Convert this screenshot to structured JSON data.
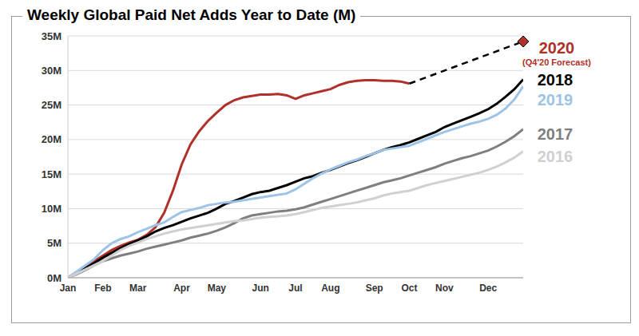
{
  "chart_data": {
    "type": "line",
    "title": "Weekly Global Paid Net Adds Year to Date (M)",
    "categories": [
      "Jan",
      null,
      null,
      null,
      "Feb",
      null,
      null,
      null,
      "Mar",
      null,
      null,
      null,
      null,
      "Apr",
      null,
      null,
      null,
      "May",
      null,
      null,
      null,
      null,
      "Jun",
      null,
      null,
      null,
      "Jul",
      null,
      null,
      null,
      "Aug",
      null,
      null,
      null,
      null,
      "Sep",
      null,
      null,
      null,
      "Oct",
      null,
      null,
      null,
      "Nov",
      null,
      null,
      null,
      null,
      "Dec",
      null,
      null,
      null,
      null
    ],
    "series": [
      {
        "name": "2020",
        "color": "#b0302a",
        "values": [
          0,
          0.8,
          1.6,
          2.4,
          3.2,
          4.0,
          4.6,
          5.1,
          5.5,
          6.2,
          7.3,
          9.4,
          12.6,
          16.4,
          19.3,
          21.2,
          22.7,
          23.9,
          25.0,
          25.7,
          26.1,
          26.3,
          26.5,
          26.5,
          26.6,
          26.4,
          25.9,
          26.4,
          26.7,
          27.0,
          27.3,
          27.9,
          28.3,
          28.5,
          28.6,
          28.6,
          28.5,
          28.5,
          28.4,
          28.1,
          null,
          null,
          null,
          null,
          null,
          null,
          null,
          null,
          null,
          null,
          null,
          null,
          null
        ]
      },
      {
        "name": "(Q4'20 Forecast)",
        "color": "#000000",
        "line_style": "dashed",
        "marker": "diamond",
        "values": [
          null,
          null,
          null,
          null,
          null,
          null,
          null,
          null,
          null,
          null,
          null,
          null,
          null,
          null,
          null,
          null,
          null,
          null,
          null,
          null,
          null,
          null,
          null,
          null,
          null,
          null,
          null,
          null,
          null,
          null,
          null,
          null,
          null,
          null,
          null,
          null,
          null,
          null,
          null,
          28.1,
          null,
          null,
          null,
          null,
          null,
          null,
          null,
          null,
          null,
          null,
          null,
          null,
          34.2
        ]
      },
      {
        "name": "2018",
        "color": "#000000",
        "values": [
          0,
          0.7,
          1.4,
          2.1,
          2.9,
          3.6,
          4.3,
          4.9,
          5.4,
          6.0,
          6.7,
          7.2,
          7.6,
          8.1,
          8.6,
          9.0,
          9.4,
          10.0,
          10.7,
          11.1,
          11.6,
          12.1,
          12.4,
          12.6,
          13.0,
          13.4,
          13.9,
          14.4,
          14.7,
          15.2,
          15.6,
          16.1,
          16.6,
          17.0,
          17.5,
          18.0,
          18.5,
          18.9,
          19.2,
          19.6,
          20.1,
          20.6,
          21.1,
          21.8,
          22.3,
          22.8,
          23.3,
          23.8,
          24.4,
          25.2,
          26.2,
          27.3,
          28.7
        ]
      },
      {
        "name": "2019",
        "color": "#9dc3e6",
        "values": [
          0,
          0.9,
          1.8,
          2.7,
          4.0,
          5.0,
          5.6,
          6.0,
          6.6,
          7.1,
          7.6,
          8.0,
          8.8,
          9.5,
          9.8,
          10.1,
          10.5,
          10.7,
          10.9,
          11.0,
          11.2,
          11.4,
          11.6,
          11.8,
          12.0,
          12.2,
          12.8,
          13.6,
          14.4,
          15.1,
          15.7,
          16.2,
          16.7,
          17.1,
          17.6,
          18.0,
          18.5,
          18.7,
          18.9,
          19.1,
          19.6,
          20.1,
          20.6,
          21.1,
          21.5,
          21.9,
          22.3,
          22.6,
          23.0,
          23.6,
          24.5,
          25.8,
          27.7
        ]
      },
      {
        "name": "2017",
        "color": "#7f7f7f",
        "values": [
          0,
          0.5,
          1.1,
          1.8,
          2.4,
          2.8,
          3.2,
          3.5,
          3.8,
          4.2,
          4.5,
          4.8,
          5.1,
          5.4,
          5.8,
          6.1,
          6.4,
          6.8,
          7.3,
          7.9,
          8.6,
          9.0,
          9.2,
          9.4,
          9.6,
          9.7,
          9.9,
          10.2,
          10.6,
          11.0,
          11.4,
          11.8,
          12.2,
          12.6,
          13.0,
          13.4,
          13.8,
          14.1,
          14.4,
          14.8,
          15.2,
          15.6,
          16.0,
          16.5,
          16.9,
          17.3,
          17.6,
          18.0,
          18.4,
          19.0,
          19.7,
          20.5,
          21.5
        ]
      },
      {
        "name": "2016",
        "color": "#d0d0d0",
        "values": [
          0,
          0.6,
          1.2,
          1.8,
          2.4,
          3.2,
          4.0,
          4.6,
          5.1,
          5.6,
          6.0,
          6.4,
          6.7,
          7.0,
          7.2,
          7.4,
          7.6,
          7.8,
          8.0,
          8.2,
          8.3,
          8.5,
          8.7,
          8.8,
          8.9,
          9.0,
          9.2,
          9.5,
          9.8,
          10.1,
          10.3,
          10.5,
          10.7,
          10.9,
          11.2,
          11.5,
          11.9,
          12.2,
          12.4,
          12.6,
          13.0,
          13.4,
          13.7,
          14.0,
          14.3,
          14.6,
          14.9,
          15.2,
          15.6,
          16.1,
          16.7,
          17.4,
          18.3
        ]
      }
    ],
    "ylim": [
      0,
      35
    ],
    "yticks": [
      {
        "value": 0,
        "label": "0M"
      },
      {
        "value": 5,
        "label": "5M"
      },
      {
        "value": 10,
        "label": "10M"
      },
      {
        "value": 15,
        "label": "15M"
      },
      {
        "value": 20,
        "label": "20M"
      },
      {
        "value": 25,
        "label": "25M"
      },
      {
        "value": 30,
        "label": "30M"
      },
      {
        "value": 35,
        "label": "35M"
      }
    ],
    "grid": true
  }
}
